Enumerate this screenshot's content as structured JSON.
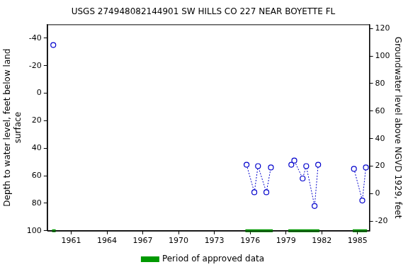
{
  "chart_data": {
    "type": "line",
    "title": "USGS 274948082144901 SW HILLS CO 227 NEAR BOYETTE FL",
    "y_label": [
      "Depth to water level, feet below land",
      "surface"
    ],
    "y2_label": "Groundwater level above NGVD 1929, feet",
    "x": [
      1959.5,
      null,
      1975.7,
      1976.35,
      1976.66,
      1977.36,
      1977.74,
      null,
      1979.45,
      1979.7,
      1980.4,
      1980.7,
      1981.4,
      1981.7,
      null,
      1984.7,
      1985.4,
      1985.7
    ],
    "values": [
      -35,
      null,
      52,
      72,
      53,
      72,
      54,
      null,
      52,
      49,
      62,
      53,
      82,
      52,
      null,
      55,
      78,
      54
    ],
    "color": "#0000cc",
    "marker": "circle",
    "line_style": "dotted",
    "approved_periods": {
      "name": "Period of approved data",
      "color": "#009900",
      "ranges": [
        [
          1959.4,
          1959.7
        ],
        [
          1975.6,
          1977.9
        ],
        [
          1979.2,
          1981.8
        ],
        [
          1984.6,
          1985.8
        ]
      ]
    },
    "xlim": [
      1959,
      1986
    ],
    "xticks": [
      1961,
      1964,
      1967,
      1970,
      1973,
      1976,
      1979,
      1982,
      1985
    ],
    "ylim": [
      100,
      -50
    ],
    "yticks": [
      -40,
      -20,
      0,
      20,
      40,
      60,
      80,
      100
    ],
    "y2lim": [
      -27,
      123
    ],
    "y2ticks": [
      -20,
      0,
      20,
      40,
      60,
      80,
      100,
      120
    ],
    "grid": false,
    "legend": "bottom"
  }
}
